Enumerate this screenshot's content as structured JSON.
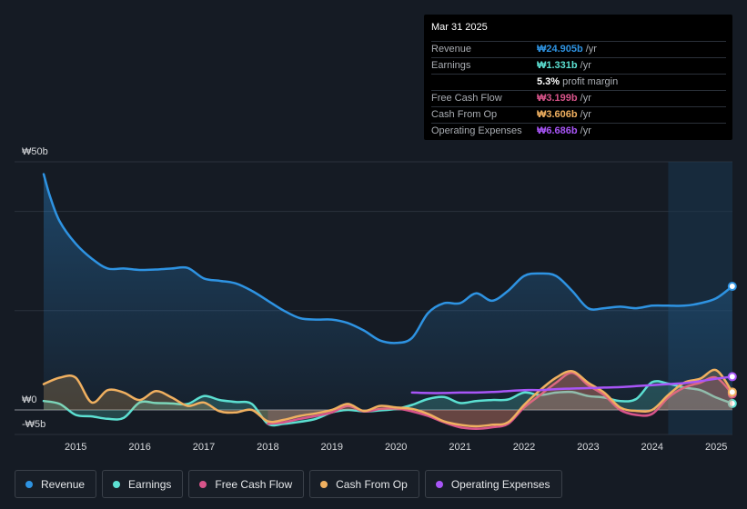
{
  "tooltip": {
    "date": "Mar 31 2025",
    "rows": [
      {
        "label": "Revenue",
        "value": "₩24.905b",
        "unit": "/yr",
        "color": "#2e93e2"
      },
      {
        "label": "Earnings",
        "value": "₩1.331b",
        "unit": "/yr",
        "color": "#5ce0d2"
      },
      {
        "label": "",
        "value": "5.3%",
        "unit": "profit margin",
        "color": "#ffffff"
      },
      {
        "label": "Free Cash Flow",
        "value": "₩3.199b",
        "unit": "/yr",
        "color": "#d8548a"
      },
      {
        "label": "Cash From Op",
        "value": "₩3.606b",
        "unit": "/yr",
        "color": "#f0b060"
      },
      {
        "label": "Operating Expenses",
        "value": "₩6.686b",
        "unit": "/yr",
        "color": "#a855f7"
      }
    ]
  },
  "legend": [
    {
      "label": "Revenue",
      "color": "#2e93e2"
    },
    {
      "label": "Earnings",
      "color": "#5ce0d2"
    },
    {
      "label": "Free Cash Flow",
      "color": "#d8548a"
    },
    {
      "label": "Cash From Op",
      "color": "#f0b060"
    },
    {
      "label": "Operating Expenses",
      "color": "#a855f7"
    }
  ],
  "chart_data": {
    "type": "area",
    "ylim": [
      -5,
      50
    ],
    "y_tick_labels": [
      {
        "value": 50,
        "label": "₩50b"
      },
      {
        "value": 0,
        "label": "₩0"
      },
      {
        "value": -5,
        "label": "-₩5b"
      }
    ],
    "x_tick_labels": [
      {
        "value": 2015,
        "label": "2015"
      },
      {
        "value": 2016,
        "label": "2016"
      },
      {
        "value": 2017,
        "label": "2017"
      },
      {
        "value": 2018,
        "label": "2018"
      },
      {
        "value": 2019,
        "label": "2019"
      },
      {
        "value": 2020,
        "label": "2020"
      },
      {
        "value": 2021,
        "label": "2021"
      },
      {
        "value": 2022,
        "label": "2022"
      },
      {
        "value": 2023,
        "label": "2023"
      },
      {
        "value": 2024,
        "label": "2024"
      },
      {
        "value": 2025,
        "label": "2025"
      }
    ],
    "xlim": [
      2014.0,
      2025.25
    ],
    "highlight_from": 2024.25,
    "series": [
      {
        "name": "Revenue",
        "color": "#2e93e2",
        "fill": true,
        "x": [
          2014.5,
          2014.6,
          2014.75,
          2015.0,
          2015.25,
          2015.5,
          2015.75,
          2016.0,
          2016.25,
          2016.5,
          2016.75,
          2017.0,
          2017.25,
          2017.5,
          2017.75,
          2018.0,
          2018.25,
          2018.5,
          2018.75,
          2019.0,
          2019.25,
          2019.5,
          2019.75,
          2020.0,
          2020.25,
          2020.5,
          2020.75,
          2021.0,
          2021.25,
          2021.5,
          2021.75,
          2022.0,
          2022.25,
          2022.5,
          2022.75,
          2023.0,
          2023.25,
          2023.5,
          2023.75,
          2024.0,
          2024.25,
          2024.5,
          2024.75,
          2025.0,
          2025.25
        ],
        "values": [
          47.5,
          43,
          38,
          33.5,
          30.5,
          28.5,
          28.5,
          28.2,
          28.3,
          28.5,
          28.6,
          26.5,
          26,
          25.5,
          24,
          22,
          20,
          18.5,
          18.2,
          18.2,
          17.5,
          16,
          14,
          13.5,
          14.5,
          19.5,
          21.5,
          21.5,
          23.5,
          22,
          24,
          27,
          27.5,
          27,
          24,
          20.5,
          20.5,
          20.8,
          20.5,
          21,
          21,
          21,
          21.5,
          22.5,
          24.9
        ]
      },
      {
        "name": "Earnings",
        "color": "#5ce0d2",
        "fill": true,
        "x": [
          2014.5,
          2014.75,
          2015.0,
          2015.25,
          2015.5,
          2015.75,
          2016.0,
          2016.25,
          2016.5,
          2016.75,
          2017.0,
          2017.25,
          2017.5,
          2017.75,
          2018.0,
          2018.25,
          2018.5,
          2018.75,
          2019.0,
          2019.25,
          2019.5,
          2019.75,
          2020.0,
          2020.25,
          2020.5,
          2020.75,
          2021.0,
          2021.25,
          2021.5,
          2021.75,
          2022.0,
          2022.25,
          2022.5,
          2022.75,
          2023.0,
          2023.25,
          2023.5,
          2023.75,
          2024.0,
          2024.25,
          2024.5,
          2024.75,
          2025.0,
          2025.25
        ],
        "values": [
          1.8,
          1.2,
          -1,
          -1.3,
          -1.8,
          -1.6,
          1.5,
          1.4,
          1.3,
          1.2,
          2.8,
          2.0,
          1.6,
          1.2,
          -2.8,
          -2.8,
          -2.4,
          -1.8,
          -0.5,
          0.0,
          -0.3,
          -0.1,
          0.2,
          1.0,
          2.2,
          2.6,
          1.4,
          1.8,
          2.0,
          2.1,
          3.5,
          3.0,
          3.5,
          3.6,
          2.8,
          2.5,
          1.8,
          2.2,
          5.6,
          5.3,
          4.5,
          4.0,
          2.5,
          1.3
        ]
      },
      {
        "name": "Free Cash Flow",
        "color": "#d8548a",
        "fill": true,
        "x": [
          2018.0,
          2018.25,
          2018.5,
          2018.75,
          2019.0,
          2019.25,
          2019.5,
          2019.75,
          2020.0,
          2020.25,
          2020.5,
          2020.75,
          2021.0,
          2021.25,
          2021.5,
          2021.75,
          2022.0,
          2022.25,
          2022.5,
          2022.75,
          2023.0,
          2023.25,
          2023.5,
          2023.75,
          2024.0,
          2024.25,
          2024.5,
          2024.75,
          2025.0,
          2025.25
        ],
        "values": [
          -2.8,
          -2.5,
          -1.8,
          -1.2,
          -0.5,
          0.8,
          -0.3,
          0.2,
          0.3,
          -0.3,
          -1.2,
          -2.5,
          -3.5,
          -3.8,
          -3.5,
          -2.8,
          0.5,
          3.0,
          5.5,
          7.5,
          5.0,
          3.0,
          0.0,
          -1.0,
          -0.8,
          2.5,
          4.5,
          5.5,
          6.5,
          3.2
        ]
      },
      {
        "name": "Cash From Op",
        "color": "#f0b060",
        "fill": true,
        "x": [
          2014.5,
          2014.75,
          2015.0,
          2015.25,
          2015.5,
          2015.75,
          2016.0,
          2016.25,
          2016.5,
          2016.75,
          2017.0,
          2017.25,
          2017.5,
          2017.75,
          2018.0,
          2018.25,
          2018.5,
          2018.75,
          2019.0,
          2019.25,
          2019.5,
          2019.75,
          2020.0,
          2020.25,
          2020.5,
          2020.75,
          2021.0,
          2021.25,
          2021.5,
          2021.75,
          2022.0,
          2022.25,
          2022.5,
          2022.75,
          2023.0,
          2023.25,
          2023.5,
          2023.75,
          2024.0,
          2024.25,
          2024.5,
          2024.75,
          2025.0,
          2025.25
        ],
        "values": [
          5.2,
          6.5,
          6.5,
          1.5,
          4.0,
          3.5,
          2.0,
          3.8,
          2.5,
          0.8,
          1.5,
          -0.3,
          -0.5,
          0.0,
          -2.3,
          -2.0,
          -1.2,
          -0.7,
          0.0,
          1.2,
          -0.2,
          0.8,
          0.5,
          0.2,
          -0.8,
          -2.3,
          -3.0,
          -3.3,
          -3.0,
          -2.5,
          1.0,
          4.0,
          6.5,
          7.8,
          5.5,
          3.5,
          0.5,
          -0.2,
          0.0,
          3.0,
          5.5,
          6.3,
          8.0,
          3.6
        ]
      },
      {
        "name": "Operating Expenses",
        "color": "#a855f7",
        "fill": false,
        "x": [
          2020.25,
          2020.5,
          2020.75,
          2021.0,
          2021.25,
          2021.5,
          2021.75,
          2022.0,
          2022.25,
          2022.5,
          2022.75,
          2023.0,
          2023.25,
          2023.5,
          2023.75,
          2024.0,
          2024.25,
          2024.5,
          2024.75,
          2025.0,
          2025.25
        ],
        "values": [
          3.5,
          3.4,
          3.4,
          3.5,
          3.5,
          3.6,
          3.8,
          4.0,
          4.0,
          4.2,
          4.3,
          4.4,
          4.5,
          4.6,
          4.8,
          5.0,
          5.2,
          5.4,
          5.8,
          6.3,
          6.7
        ]
      }
    ]
  }
}
